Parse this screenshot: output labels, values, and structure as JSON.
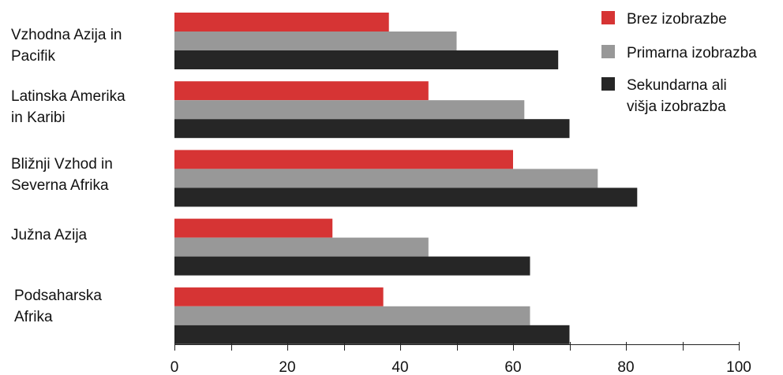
{
  "chart_data": {
    "type": "bar",
    "orientation": "horizontal",
    "title": "",
    "xlabel": "",
    "ylabel": "",
    "categories": [
      "Vzhodna Azija in\nPacifik",
      "Latinska Amerika\nin Karibi",
      "Bližnji Vzhod in\nSeverna Afrika",
      "Južna Azija",
      "Podsaharska\nAfrika"
    ],
    "series": [
      {
        "name": "Brez izobrazbe",
        "color": "#d63434",
        "values": [
          38,
          45,
          60,
          28,
          37
        ]
      },
      {
        "name": "Primarna izobrazba",
        "color": "#989898",
        "values": [
          50,
          62,
          75,
          45,
          63
        ]
      },
      {
        "name": "Sekundarna ali\nvišja izobrazba",
        "color": "#262626",
        "values": [
          68,
          70,
          82,
          63,
          70
        ]
      }
    ],
    "xlim": [
      0,
      100
    ],
    "ticks": [
      0,
      20,
      40,
      60,
      80,
      100
    ],
    "tick_labels": [
      "0",
      "20",
      "40",
      "60",
      "80",
      "100"
    ],
    "grid": false,
    "legend_position": "top-right"
  }
}
